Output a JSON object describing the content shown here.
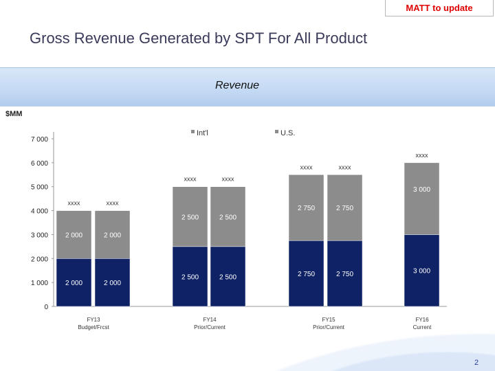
{
  "header": {
    "tag": "MATT to update",
    "title": "Gross Revenue Generated by SPT For All Product"
  },
  "page_number": "2",
  "colors": {
    "intl": "#8c8c8c",
    "us": "#0f2266",
    "tag_text": "#e00000"
  },
  "chart_data": {
    "type": "bar",
    "stacked": true,
    "title": "Revenue",
    "ylabel": "$MM",
    "xlabel": "",
    "ylim": [
      0,
      7000
    ],
    "yticks": [
      0,
      1000,
      2000,
      3000,
      4000,
      5000,
      6000,
      7000
    ],
    "ytick_labels": [
      "0",
      "1 000",
      "2 000",
      "3 000",
      "4 000",
      "5 000",
      "6 000",
      "7 000"
    ],
    "grid": false,
    "legend": {
      "position": "top",
      "entries": [
        "Int'l",
        "U.S."
      ]
    },
    "groups": [
      {
        "label_lines": [
          "FY13",
          "Budget/Frcst"
        ],
        "bars": 2
      },
      {
        "label_lines": [
          "FY14",
          "Prior/Current"
        ],
        "bars": 2
      },
      {
        "label_lines": [
          "FY15",
          "Prior/Current"
        ],
        "bars": 2
      },
      {
        "label_lines": [
          "FY16",
          "Current"
        ],
        "bars": 1
      }
    ],
    "series": [
      {
        "name": "U.S.",
        "values": [
          2000,
          2000,
          2500,
          2500,
          2750,
          2750,
          3000
        ],
        "labels": [
          "2 000",
          "2 000",
          "2 500",
          "2 500",
          "2 750",
          "2 750",
          "3 000"
        ]
      },
      {
        "name": "Int'l",
        "values": [
          2000,
          2000,
          2500,
          2500,
          2750,
          2750,
          3000
        ],
        "labels": [
          "2 000",
          "2 000",
          "2 500",
          "2 500",
          "2 750",
          "2 750",
          "3 000"
        ]
      }
    ],
    "total_labels": [
      "xxxx",
      "xxxx",
      "xxxx",
      "xxxx",
      "xxxx",
      "xxxx",
      "xxxx"
    ]
  }
}
